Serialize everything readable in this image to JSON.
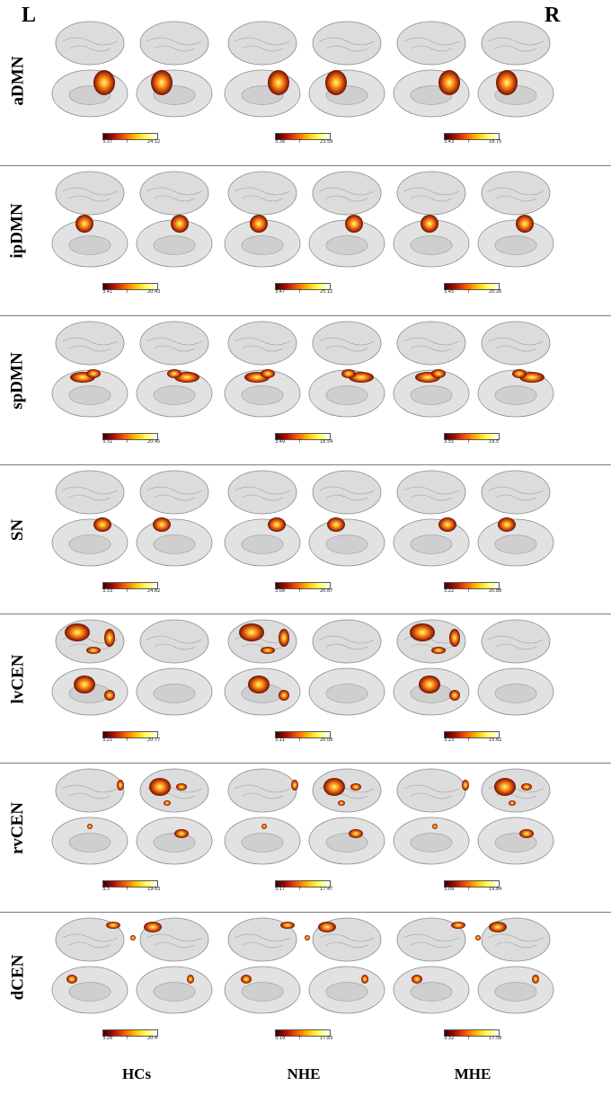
{
  "corner_labels": {
    "left": "L",
    "right": "R"
  },
  "columns": [
    "HCs",
    "NHE",
    "MHE"
  ],
  "rows": [
    {
      "name": "aDMN",
      "colorbars": [
        [
          "3.37",
          "24.12"
        ],
        [
          "3.38",
          "23.59"
        ],
        [
          "3.43",
          "18.75"
        ]
      ]
    },
    {
      "name": "ipDMN",
      "colorbars": [
        [
          "3.41",
          "20.43"
        ],
        [
          "3.47",
          "25.12"
        ],
        [
          "3.45",
          "20.26"
        ]
      ]
    },
    {
      "name": "spDMN",
      "colorbars": [
        [
          "3.31",
          "20.45"
        ],
        [
          "3.49",
          "18.54"
        ],
        [
          "3.55",
          "19.5"
        ]
      ]
    },
    {
      "name": "SN",
      "colorbars": [
        [
          "3.33",
          "24.82"
        ],
        [
          "3.08",
          "20.87"
        ],
        [
          "3.22",
          "20.88"
        ]
      ]
    },
    {
      "name": "lvCEN",
      "colorbars": [
        [
          "3.21",
          "20.77"
        ],
        [
          "3.11",
          "20.08"
        ],
        [
          "3.23",
          "15.62"
        ]
      ]
    },
    {
      "name": "rvCEN",
      "colorbars": [
        [
          "3.3",
          "19.63"
        ],
        [
          "3.17",
          "17.47"
        ],
        [
          "3.09",
          "19.84"
        ]
      ]
    },
    {
      "name": "dCEN",
      "colorbars": [
        [
          "3.28",
          "20.4"
        ],
        [
          "3.19",
          "17.83"
        ],
        [
          "3.32",
          "17.58"
        ]
      ]
    }
  ],
  "colorbar_symbol": "T",
  "colors": {
    "brain": "#dcdcdc",
    "brain_edge": "#8a8a8a",
    "activation_low": "#5a0000",
    "activation_high": "#ffff80"
  }
}
